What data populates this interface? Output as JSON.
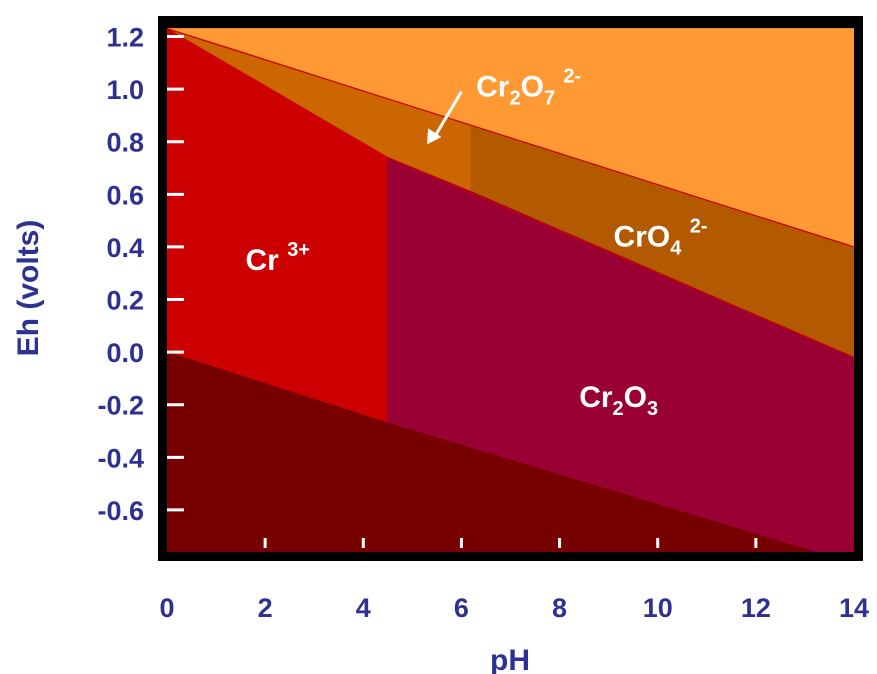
{
  "chart_data": {
    "type": "area",
    "title": "",
    "xlabel": "pH",
    "ylabel": "Eh (volts)",
    "xlim": [
      0,
      14
    ],
    "ylim": [
      -0.76,
      1.24
    ],
    "grid": false,
    "x_ticks": [
      "0",
      "2",
      "4",
      "6",
      "8",
      "10",
      "12",
      "14"
    ],
    "y_ticks": [
      "1.2",
      "1.0",
      "0.8",
      "0.6",
      "0.4",
      "0.2",
      "0.0",
      "-0.2",
      "-0.4",
      "-0.6"
    ],
    "x_tick_values": [
      0,
      2,
      4,
      6,
      8,
      10,
      12,
      14
    ],
    "y_tick_values": [
      1.2,
      1.0,
      0.8,
      0.6,
      0.4,
      0.2,
      0.0,
      -0.2,
      -0.4,
      -0.6
    ],
    "regions": [
      {
        "key": "upper",
        "color": "#FF9933",
        "polygon": [
          [
            0,
            1.23
          ],
          [
            14,
            1.23
          ],
          [
            14,
            0.4
          ],
          [
            6.2,
            0.86
          ],
          [
            1.4,
            1.15
          ]
        ]
      },
      {
        "key": "cr2o7",
        "color": "#CC6600",
        "polygon": [
          [
            0,
            1.23
          ],
          [
            1.4,
            1.15
          ],
          [
            6.2,
            0.86
          ],
          [
            6.2,
            0.61
          ],
          [
            4.5,
            0.74
          ]
        ]
      },
      {
        "key": "cro4",
        "color": "#B35900",
        "polygon": [
          [
            6.2,
            0.86
          ],
          [
            14,
            0.4
          ],
          [
            14,
            -0.02
          ],
          [
            6.2,
            0.61
          ]
        ]
      },
      {
        "key": "cr3",
        "color": "#CC0000",
        "polygon": [
          [
            0,
            1.23
          ],
          [
            4.5,
            0.74
          ],
          [
            4.5,
            -0.27
          ],
          [
            0,
            -0.0
          ]
        ]
      },
      {
        "key": "cr2o3",
        "color": "#990033",
        "polygon": [
          [
            4.5,
            0.74
          ],
          [
            6.2,
            0.61
          ],
          [
            14,
            -0.02
          ],
          [
            14,
            -0.76
          ],
          [
            13.2,
            -0.76
          ],
          [
            4.5,
            -0.27
          ]
        ]
      },
      {
        "key": "lower",
        "color": "#770000",
        "polygon": [
          [
            0,
            0.0
          ],
          [
            4.5,
            -0.27
          ],
          [
            13.2,
            -0.76
          ],
          [
            0,
            -0.76
          ]
        ]
      }
    ],
    "labels": [
      {
        "main": "Cr",
        "sup": "3+",
        "sub": "",
        "x": 1.6,
        "y": 0.35,
        "size": 30
      },
      {
        "main": "Cr",
        "sub1": "2",
        "mid": "O",
        "sub2": "3",
        "x": 8.8,
        "y": -0.17,
        "size": 30
      },
      {
        "main": "CrO",
        "sub": "4",
        "sup": "2-",
        "x": 9.9,
        "y": 0.45,
        "size": 30
      },
      {
        "main": "Cr",
        "sub1": "2",
        "mid": "O",
        "sub2": "7",
        "sup": "2-",
        "x": 7.0,
        "y": 1.01,
        "size": 30
      }
    ],
    "region_label_text": {
      "cr3": "Cr",
      "cr3_sup": "3+",
      "cr2o3": "Cr",
      "cr2o3_sub1": "2",
      "cr2o3_mid": "O",
      "cr2o3_sub2": "3",
      "cro4": "CrO",
      "cro4_sub": "4",
      "cro4_sup": "2-",
      "cr2o7": "Cr",
      "cr2o7_sub1": "2",
      "cr2o7_mid": "O",
      "cr2o7_sub2": "7",
      "cr2o7_sup": "2-"
    }
  },
  "colors": {
    "axis_text": "#2E3192",
    "frame": "#000000",
    "tick": "#ffffff",
    "arrow": "#ffffff"
  }
}
